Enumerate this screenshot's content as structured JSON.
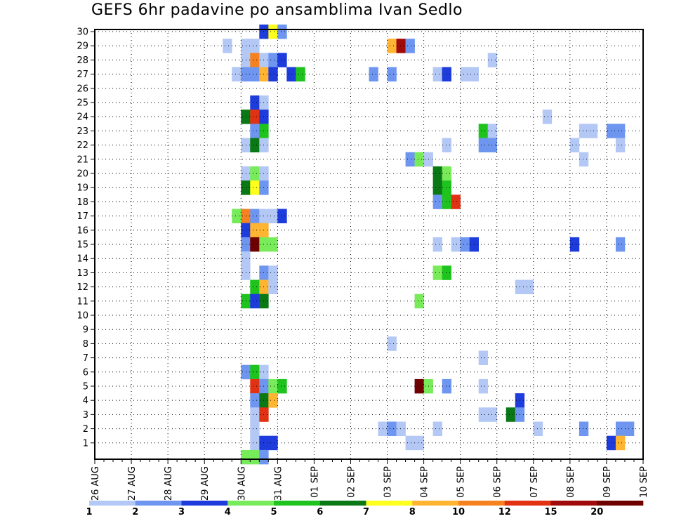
{
  "title": "GEFS 6hr padavine po ansamblima Ivan Sedlo",
  "chart_data": {
    "type": "heatmap",
    "title": "GEFS 6hr padavine po ansamblima Ivan Sedlo",
    "x_tick_labels": [
      "26 AUG",
      "27 AUG",
      "28 AUG",
      "29 AUG",
      "30 AUG",
      "31 AUG",
      "01 SEP",
      "02 SEP",
      "03 SEP",
      "04 SEP",
      "05 SEP",
      "06 SEP",
      "07 SEP",
      "08 SEP",
      "09 SEP",
      "10 SEP"
    ],
    "x_step_hours": 6,
    "y_tick_labels": [
      "1",
      "2",
      "3",
      "4",
      "5",
      "6",
      "7",
      "8",
      "9",
      "10",
      "11",
      "12",
      "13",
      "14",
      "15",
      "16",
      "17",
      "18",
      "19",
      "20",
      "21",
      "22",
      "23",
      "24",
      "25",
      "26",
      "27",
      "28",
      "29",
      "30"
    ],
    "y_range": [
      0,
      30
    ],
    "grid": true,
    "colorbar": {
      "labels": [
        "1",
        "2",
        "3",
        "4",
        "5",
        "6",
        "7",
        "8",
        "10",
        "12",
        "15",
        "20"
      ],
      "colors": [
        "#b4c8f5",
        "#6e96f0",
        "#1e3cdc",
        "#78eb5a",
        "#1ec31e",
        "#0a7814",
        "#ffff1e",
        "#ffb432",
        "#f5821e",
        "#e13214",
        "#a00a0a",
        "#6e0000"
      ]
    },
    "cells": [
      [
        18,
        30,
        2
      ],
      [
        19,
        30,
        6
      ],
      [
        20,
        30,
        1
      ],
      [
        14,
        29,
        0
      ],
      [
        16,
        29,
        0
      ],
      [
        17,
        29,
        0
      ],
      [
        32,
        29,
        7
      ],
      [
        33,
        29,
        10
      ],
      [
        34,
        29,
        1
      ],
      [
        16,
        28,
        0
      ],
      [
        17,
        28,
        8
      ],
      [
        18,
        28,
        0
      ],
      [
        19,
        28,
        1
      ],
      [
        20,
        28,
        2
      ],
      [
        43,
        28,
        0
      ],
      [
        15,
        27,
        0
      ],
      [
        16,
        27,
        1
      ],
      [
        17,
        27,
        1
      ],
      [
        18,
        27,
        7
      ],
      [
        19,
        27,
        2
      ],
      [
        21,
        27,
        2
      ],
      [
        22,
        27,
        4
      ],
      [
        30,
        27,
        1
      ],
      [
        32,
        27,
        1
      ],
      [
        37,
        27,
        0
      ],
      [
        38,
        27,
        2
      ],
      [
        40,
        27,
        0
      ],
      [
        41,
        27,
        0
      ],
      [
        17,
        25,
        2
      ],
      [
        18,
        25,
        0
      ],
      [
        16,
        24,
        5
      ],
      [
        17,
        24,
        9
      ],
      [
        18,
        24,
        2
      ],
      [
        49,
        24,
        0
      ],
      [
        17,
        23,
        1
      ],
      [
        18,
        23,
        4
      ],
      [
        42,
        23,
        4
      ],
      [
        43,
        23,
        0
      ],
      [
        53,
        23,
        0
      ],
      [
        54,
        23,
        0
      ],
      [
        56,
        23,
        1
      ],
      [
        57,
        23,
        1
      ],
      [
        16,
        22,
        0
      ],
      [
        17,
        22,
        5
      ],
      [
        18,
        22,
        0
      ],
      [
        38,
        22,
        0
      ],
      [
        42,
        22,
        1
      ],
      [
        43,
        22,
        1
      ],
      [
        52,
        22,
        0
      ],
      [
        57,
        22,
        0
      ],
      [
        34,
        21,
        1
      ],
      [
        35,
        21,
        3
      ],
      [
        36,
        21,
        0
      ],
      [
        53,
        21,
        0
      ],
      [
        16,
        20,
        0
      ],
      [
        17,
        20,
        3
      ],
      [
        18,
        20,
        0
      ],
      [
        37,
        20,
        5
      ],
      [
        38,
        20,
        3
      ],
      [
        16,
        19,
        5
      ],
      [
        17,
        19,
        6
      ],
      [
        18,
        19,
        1
      ],
      [
        37,
        19,
        5
      ],
      [
        38,
        19,
        4
      ],
      [
        37,
        18,
        1
      ],
      [
        38,
        18,
        4
      ],
      [
        39,
        18,
        9
      ],
      [
        15,
        17,
        3
      ],
      [
        16,
        17,
        8
      ],
      [
        17,
        17,
        1
      ],
      [
        18,
        17,
        0
      ],
      [
        19,
        17,
        0
      ],
      [
        20,
        17,
        2
      ],
      [
        16,
        16,
        2
      ],
      [
        17,
        16,
        7
      ],
      [
        18,
        16,
        7
      ],
      [
        16,
        15,
        1
      ],
      [
        17,
        15,
        11
      ],
      [
        18,
        15,
        3
      ],
      [
        19,
        15,
        3
      ],
      [
        37,
        15,
        0
      ],
      [
        39,
        15,
        0
      ],
      [
        40,
        15,
        1
      ],
      [
        41,
        15,
        2
      ],
      [
        52,
        15,
        2
      ],
      [
        57,
        15,
        1
      ],
      [
        16,
        14,
        0
      ],
      [
        16,
        13,
        0
      ],
      [
        18,
        13,
        1
      ],
      [
        19,
        13,
        0
      ],
      [
        37,
        13,
        3
      ],
      [
        38,
        13,
        4
      ],
      [
        17,
        12,
        4
      ],
      [
        18,
        12,
        7
      ],
      [
        19,
        12,
        0
      ],
      [
        46,
        12,
        0
      ],
      [
        47,
        12,
        0
      ],
      [
        16,
        11,
        4
      ],
      [
        17,
        11,
        2
      ],
      [
        18,
        11,
        5
      ],
      [
        35,
        11,
        3
      ],
      [
        32,
        8,
        0
      ],
      [
        42,
        7,
        0
      ],
      [
        16,
        6,
        1
      ],
      [
        17,
        6,
        4
      ],
      [
        18,
        6,
        0
      ],
      [
        17,
        5,
        9
      ],
      [
        18,
        5,
        1
      ],
      [
        19,
        5,
        3
      ],
      [
        20,
        5,
        4
      ],
      [
        35,
        5,
        11
      ],
      [
        36,
        5,
        3
      ],
      [
        38,
        5,
        1
      ],
      [
        42,
        5,
        0
      ],
      [
        17,
        4,
        1
      ],
      [
        18,
        4,
        5
      ],
      [
        19,
        4,
        7
      ],
      [
        46,
        4,
        2
      ],
      [
        17,
        3,
        0
      ],
      [
        18,
        3,
        9
      ],
      [
        42,
        3,
        0
      ],
      [
        43,
        3,
        0
      ],
      [
        45,
        3,
        5
      ],
      [
        46,
        3,
        1
      ],
      [
        17,
        2,
        0
      ],
      [
        31,
        2,
        0
      ],
      [
        32,
        2,
        1
      ],
      [
        33,
        2,
        0
      ],
      [
        37,
        2,
        0
      ],
      [
        48,
        2,
        0
      ],
      [
        53,
        2,
        1
      ],
      [
        57,
        2,
        1
      ],
      [
        58,
        2,
        1
      ],
      [
        17,
        1,
        0
      ],
      [
        18,
        1,
        2
      ],
      [
        19,
        1,
        2
      ],
      [
        34,
        1,
        0
      ],
      [
        35,
        1,
        0
      ],
      [
        56,
        1,
        2
      ],
      [
        57,
        1,
        7
      ],
      [
        16,
        0,
        3
      ],
      [
        17,
        0,
        3
      ],
      [
        18,
        0,
        1
      ]
    ]
  }
}
